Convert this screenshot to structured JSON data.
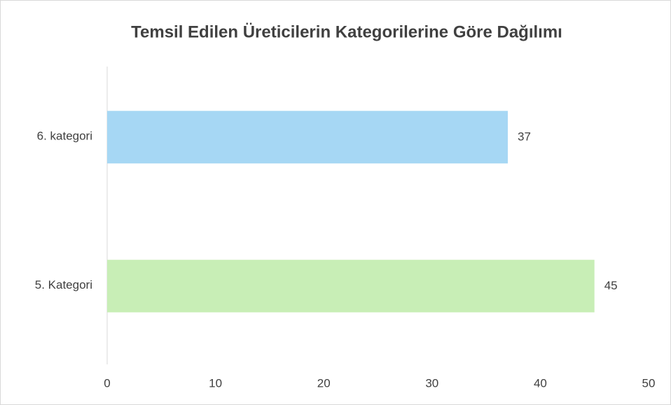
{
  "chart_data": {
    "type": "bar",
    "orientation": "horizontal",
    "title": "Temsil Edilen Üreticilerin Kategorilerine Göre Dağılımı",
    "categories": [
      "6. kategori",
      "5. Kategori"
    ],
    "values": [
      37,
      45
    ],
    "colors": [
      "#a6d7f4",
      "#c8eeb6"
    ],
    "xlim": [
      0,
      50
    ],
    "xticks": [
      0,
      10,
      20,
      30,
      40,
      50
    ],
    "grid": false
  }
}
